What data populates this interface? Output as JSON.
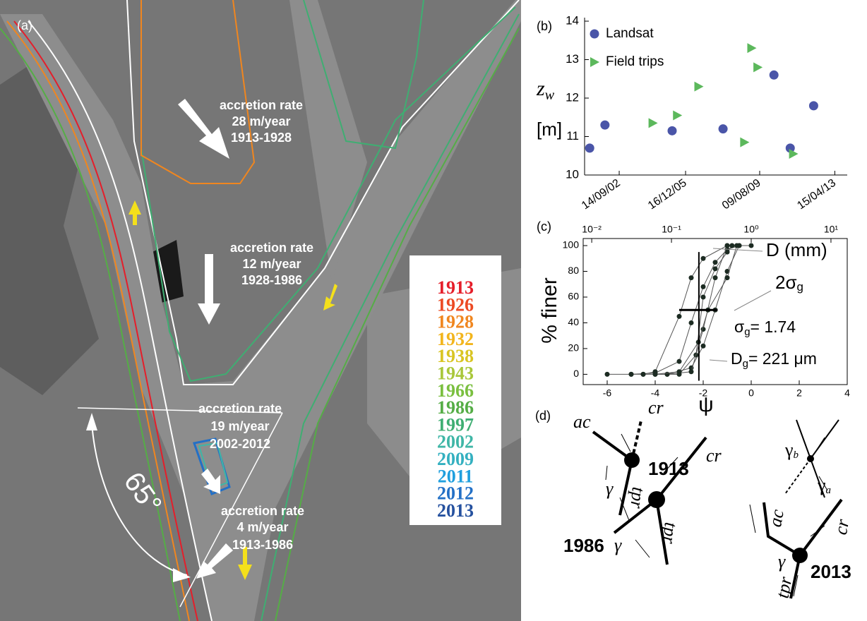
{
  "panel_a": {
    "label": "(a)",
    "annotations": [
      {
        "lines": [
          "accretion rate",
          "28 m/year",
          "1913-1928"
        ]
      },
      {
        "lines": [
          "accretion rate",
          "12 m/year",
          "1928-1986"
        ]
      },
      {
        "lines": [
          "accretion rate",
          "19 m/year",
          "2002-2012"
        ]
      },
      {
        "lines": [
          "accretion rate",
          "4 m/year",
          "1913-1986"
        ]
      }
    ],
    "angle": "65°",
    "legend": [
      {
        "name": "1913",
        "color": "#e51e2a"
      },
      {
        "name": "1926",
        "color": "#ec4a24"
      },
      {
        "name": "1928",
        "color": "#f0861f"
      },
      {
        "name": "1932",
        "color": "#f2b51d"
      },
      {
        "name": "1938",
        "color": "#d9c523"
      },
      {
        "name": "1943",
        "color": "#a9c73a"
      },
      {
        "name": "1966",
        "color": "#7abf3f"
      },
      {
        "name": "1986",
        "color": "#55ad46"
      },
      {
        "name": "1997",
        "color": "#3fae72"
      },
      {
        "name": "2002",
        "color": "#3fb6a6"
      },
      {
        "name": "2009",
        "color": "#34b0c0"
      },
      {
        "name": "2011",
        "color": "#1f9fde"
      },
      {
        "name": "2012",
        "color": "#2370c6"
      },
      {
        "name": "2013",
        "color": "#25519f"
      }
    ]
  },
  "chart_data": [
    {
      "type": "scatter",
      "label": "(b)",
      "ylabel": {
        "symbol": "z",
        "sub": "w",
        "unit": "[m]"
      },
      "xlim": [
        2001,
        2013.9
      ],
      "xticks": [
        {
          "value": 2002.7,
          "label": "14/09/02"
        },
        {
          "value": 2005.96,
          "label": "16/12/05"
        },
        {
          "value": 2009.6,
          "label": "09/08/09"
        },
        {
          "value": 2013.29,
          "label": "15/04/13"
        }
      ],
      "ylim": [
        10,
        14
      ],
      "yticks": [
        10,
        11,
        12,
        13,
        14
      ],
      "legend": "upper left",
      "series": [
        {
          "name": "Landsat",
          "color": "#4a55a8",
          "marker": "circle",
          "x": [
            2001.25,
            2002.0,
            2005.3,
            2007.8,
            2010.3,
            2011.1,
            2012.25
          ],
          "values": [
            10.7,
            11.3,
            11.15,
            11.2,
            12.6,
            10.7,
            11.8
          ]
        },
        {
          "name": "Field trips",
          "color": "#5cb85c",
          "marker": "triangle",
          "x": [
            2004.35,
            2005.55,
            2006.6,
            2008.85,
            2009.2,
            2009.5,
            2011.25
          ],
          "values": [
            11.35,
            11.55,
            12.3,
            10.85,
            13.3,
            12.8,
            10.55
          ]
        }
      ]
    },
    {
      "type": "line",
      "label": "(c)",
      "ylabel": "% finer",
      "xlabel": "ψ",
      "x2label": "D (mm)",
      "xlim": [
        -7,
        4
      ],
      "xticks": [
        -6,
        -4,
        -2,
        0,
        2,
        4
      ],
      "ylim": [
        -8,
        105.5
      ],
      "yticks": [
        0,
        20,
        40,
        60,
        80,
        100
      ],
      "x2ticks": [
        {
          "value": 0.01,
          "label": "10⁻²"
        },
        {
          "value": 0.1,
          "label": "10⁻¹"
        },
        {
          "value": 1,
          "label": "10⁰"
        },
        {
          "value": 10,
          "label": "10¹"
        }
      ],
      "spread_label": [
        "2σ",
        "g"
      ],
      "sigma_label": [
        "σ",
        "g",
        "= 1.74"
      ],
      "dg_label": [
        "D",
        "g",
        "= 221 μm"
      ],
      "dg_psi": -2.18,
      "spread_bar": {
        "x": [
          -3.0,
          -1.4
        ],
        "y": 50
      },
      "series": [
        {
          "color": "#1c2b22",
          "x": [
            -6,
            -5,
            -4.5,
            -4,
            -3,
            -2.5,
            -2,
            -1,
            0
          ],
          "values": [
            0,
            0,
            0,
            2,
            45,
            75,
            90,
            100,
            100
          ]
        },
        {
          "color": "#1c2b22",
          "x": [
            -5,
            -4,
            -3,
            -2.5,
            -2,
            -1.5,
            -1,
            -0.5
          ],
          "values": [
            0,
            1,
            10,
            40,
            68,
            87,
            97,
            100
          ]
        },
        {
          "color": "#1c2b22",
          "x": [
            -4.5,
            -3.5,
            -2.5,
            -2,
            -1.5,
            -1,
            -0.5
          ],
          "values": [
            0,
            0,
            5,
            22,
            50,
            80,
            100
          ]
        },
        {
          "color": "#1c2b22",
          "x": [
            -4,
            -3,
            -2.3,
            -2,
            -1.5,
            -1,
            -0.8
          ],
          "values": [
            0,
            0,
            15,
            60,
            82,
            95,
            100
          ]
        },
        {
          "color": "#1c2b22",
          "x": [
            -3.5,
            -2.5,
            -2,
            -1.5,
            -1
          ],
          "values": [
            0,
            2,
            35,
            75,
            100
          ]
        },
        {
          "color": "#1c2b22",
          "x": [
            -4,
            -3,
            -2.2,
            -1.8,
            -1,
            -0.6
          ],
          "values": [
            0,
            2,
            25,
            50,
            75,
            100
          ]
        }
      ]
    }
  ],
  "panel_d": {
    "label": "(d)",
    "ac1": "ac",
    "cr1": "cr",
    "y1913": "1913",
    "gamma1": "γ",
    "tpr1": "tpr",
    "cr2": "cr",
    "y1986": "1986",
    "gamma2": "γ",
    "tpr2": "tpr",
    "gamma_b": [
      "γ",
      "b"
    ],
    "gamma_a": [
      "γ",
      "a"
    ],
    "ac3": "ac",
    "cr3": "cr",
    "gamma3": "γ",
    "tpr3": "tpr",
    "y2013": "2013"
  }
}
